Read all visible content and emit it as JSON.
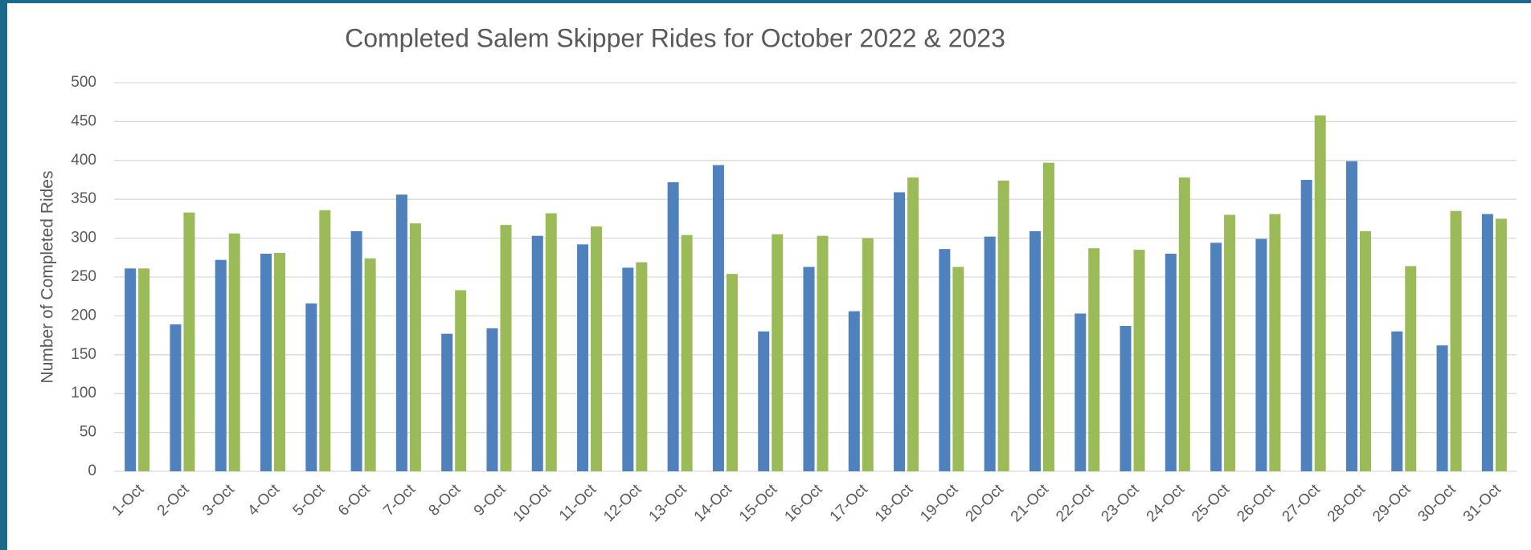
{
  "chart_data": {
    "type": "bar",
    "title": "Completed Salem Skipper Rides for October 2022 & 2023",
    "y_label": "Number of Completed Rides",
    "categories": [
      "1-Oct",
      "2-Oct",
      "3-Oct",
      "4-Oct",
      "5-Oct",
      "6-Oct",
      "7-Oct",
      "8-Oct",
      "9-Oct",
      "10-Oct",
      "11-Oct",
      "12-Oct",
      "13-Oct",
      "14-Oct",
      "15-Oct",
      "16-Oct",
      "17-Oct",
      "18-Oct",
      "19-Oct",
      "20-Oct",
      "21-Oct",
      "22-Oct",
      "23-Oct",
      "24-Oct",
      "25-Oct",
      "26-Oct",
      "27-Oct",
      "28-Oct",
      "29-Oct",
      "30-Oct",
      "31-Oct"
    ],
    "series": [
      {
        "color": "#4f81bd",
        "values": [
          261,
          189,
          272,
          280,
          216,
          309,
          356,
          177,
          184,
          303,
          292,
          262,
          372,
          394,
          180,
          263,
          206,
          359,
          286,
          302,
          309,
          203,
          187,
          280,
          294,
          299,
          375,
          399,
          180,
          162,
          331
        ]
      },
      {
        "color": "#9bbb59",
        "values": [
          261,
          333,
          306,
          281,
          336,
          274,
          319,
          233,
          317,
          332,
          315,
          269,
          304,
          254,
          305,
          303,
          300,
          378,
          263,
          374,
          397,
          287,
          285,
          378,
          330,
          331,
          458,
          309,
          264,
          335,
          325
        ]
      }
    ],
    "ylim": [
      0,
      500
    ],
    "yticks": [
      0,
      50,
      100,
      150,
      200,
      250,
      300,
      350,
      400,
      450,
      500
    ],
    "grid": true
  }
}
